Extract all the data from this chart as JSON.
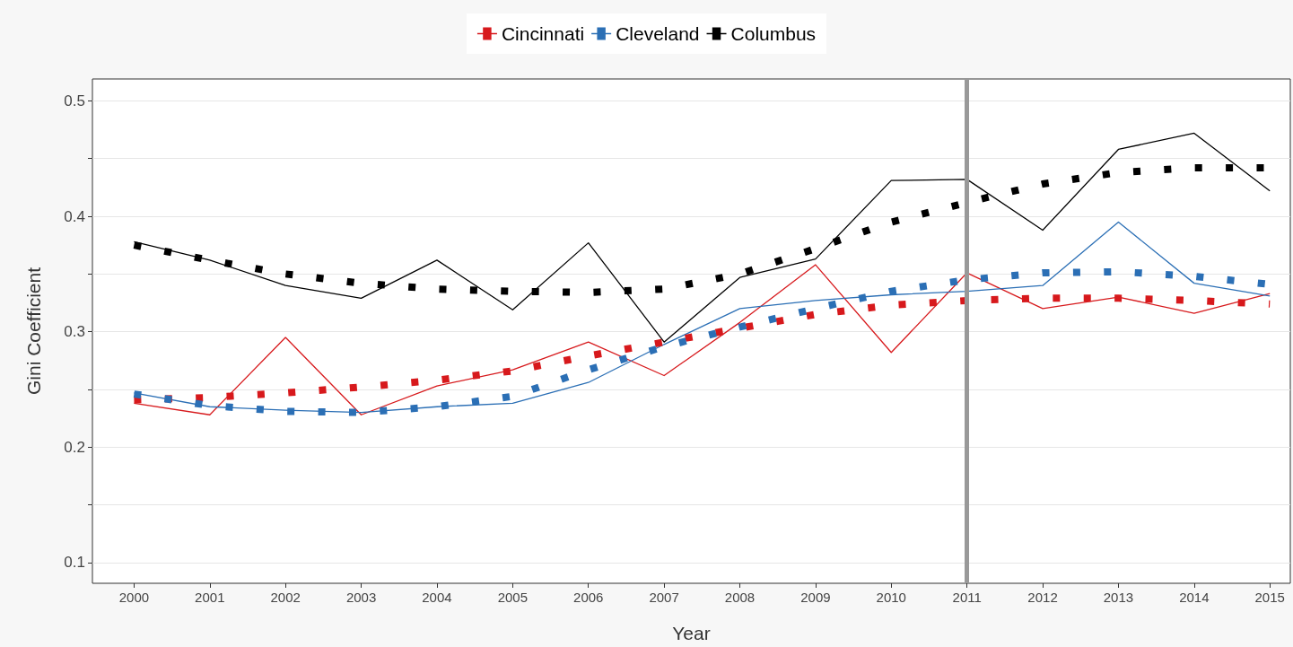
{
  "chart_data": {
    "type": "line",
    "xlabel": "Year",
    "ylabel": "Gini Coefficient",
    "x": [
      2000,
      2001,
      2002,
      2003,
      2004,
      2005,
      2006,
      2007,
      2008,
      2009,
      2010,
      2011,
      2012,
      2013,
      2014,
      2015
    ],
    "series": [
      {
        "name": "Cincinnati",
        "color": "#d7191c",
        "values": [
          0.238,
          0.228,
          0.295,
          0.228,
          0.253,
          0.267,
          0.291,
          0.262,
          0.308,
          0.358,
          0.282,
          0.351,
          0.32,
          0.33,
          0.316,
          0.333
        ]
      },
      {
        "name": "Cleveland",
        "color": "#2b6fb5",
        "values": [
          0.247,
          0.235,
          0.232,
          0.23,
          0.235,
          0.238,
          0.256,
          0.289,
          0.32,
          0.327,
          0.332,
          0.335,
          0.34,
          0.395,
          0.342,
          0.331
        ]
      },
      {
        "name": "Columbus",
        "color": "#000000",
        "values": [
          0.378,
          0.362,
          0.34,
          0.329,
          0.362,
          0.319,
          0.377,
          0.291,
          0.347,
          0.363,
          0.431,
          0.432,
          0.388,
          0.458,
          0.472,
          0.422
        ]
      },
      {
        "color": "#d7191c",
        "line_style": "dotted",
        "x": [
          2000,
          2001,
          2002,
          2003,
          2004,
          2005,
          2006,
          2007,
          2008,
          2009,
          2010,
          2011,
          2012,
          2013,
          2014,
          2015
        ],
        "values": [
          0.241,
          0.243,
          0.247,
          0.252,
          0.258,
          0.266,
          0.279,
          0.291,
          0.303,
          0.315,
          0.323,
          0.327,
          0.329,
          0.329,
          0.327,
          0.324
        ]
      },
      {
        "color": "#2b6fb5",
        "line_style": "dotted",
        "x": [
          2000,
          2001,
          2002,
          2003,
          2004,
          2005,
          2006,
          2007,
          2008,
          2009,
          2010,
          2011,
          2012,
          2013,
          2014,
          2015
        ],
        "values": [
          0.246,
          0.236,
          0.231,
          0.23,
          0.235,
          0.244,
          0.267,
          0.287,
          0.304,
          0.32,
          0.335,
          0.345,
          0.351,
          0.352,
          0.348,
          0.341
        ]
      },
      {
        "color": "#000000",
        "line_style": "dotted",
        "x": [
          2000,
          2001,
          2002,
          2003,
          2004,
          2005,
          2006,
          2007,
          2008,
          2009,
          2010,
          2011,
          2012,
          2013,
          2014,
          2015
        ],
        "values": [
          0.375,
          0.362,
          0.35,
          0.342,
          0.337,
          0.335,
          0.334,
          0.337,
          0.35,
          0.372,
          0.395,
          0.412,
          0.428,
          0.438,
          0.442,
          0.442
        ]
      }
    ],
    "xlim": [
      1999.45,
      2015.27
    ],
    "xticks": [
      2000,
      2001,
      2002,
      2003,
      2004,
      2005,
      2006,
      2007,
      2008,
      2009,
      2010,
      2011,
      2012,
      2013,
      2014,
      2015
    ],
    "ylim": [
      0.082,
      0.519
    ],
    "yticks": [
      0.1,
      {
        "value": 0.15,
        "label": null
      },
      0.2,
      {
        "value": 0.25,
        "label": null
      },
      0.3,
      {
        "value": 0.35,
        "label": null
      },
      0.4,
      {
        "value": 0.45,
        "label": null
      },
      0.5
    ],
    "ref_lines": [
      {
        "axis": "x",
        "value": 2011,
        "color": "#999999"
      }
    ],
    "grid": "y",
    "legend": "top",
    "line_style": "solid"
  }
}
